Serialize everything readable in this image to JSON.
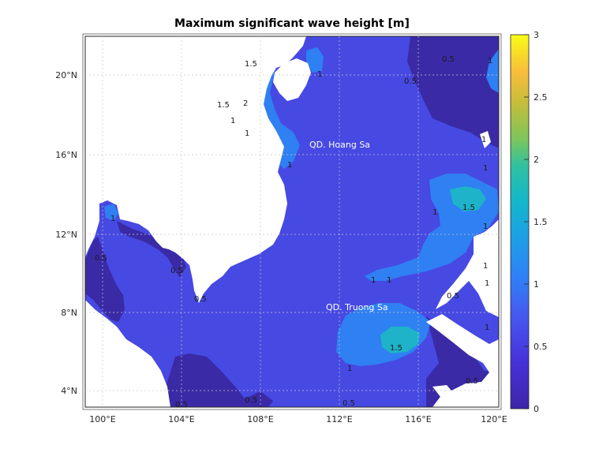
{
  "title": "Maximum significant wave height [m]",
  "x_ticks": [
    "100°E",
    "104°E",
    "108°E",
    "112°E",
    "116°E",
    "120°E"
  ],
  "y_ticks": [
    "20°N",
    "16°N",
    "12°N",
    "8°N",
    "4°N"
  ],
  "colorbar": {
    "ticks": [
      "3",
      "2.5",
      "2",
      "1.5",
      "1",
      "0.5",
      "0"
    ],
    "colormap": [
      "#3e26a8",
      "#4743e0",
      "#2e87f7",
      "#1bb4d3",
      "#3dc187",
      "#a8c33d",
      "#f8ba3c",
      "#f9fb15"
    ]
  },
  "places": [
    "QD. Hoang Sa",
    "QD. Truong Sa"
  ],
  "contour_labels": [
    "1.5",
    "1",
    "2",
    "1.5",
    "1",
    "1",
    "1",
    "0.5",
    "1",
    "1",
    "1",
    "0.5",
    "0.5",
    "1",
    "1.5",
    "1",
    "1",
    "0.5",
    "1",
    "0.5",
    "0.5",
    "1",
    "1.5",
    "1",
    "1",
    "0.5",
    "0.5",
    "1",
    "0.5",
    "0.5",
    "1"
  ],
  "colors": {
    "land": "#ffffff",
    "sea_base": "#4749e3",
    "low": "#3a2aa6",
    "mid": "#2f80f2",
    "high": "#1eb3c8",
    "higher": "#7cc54a",
    "peak": "#f5b640"
  }
}
